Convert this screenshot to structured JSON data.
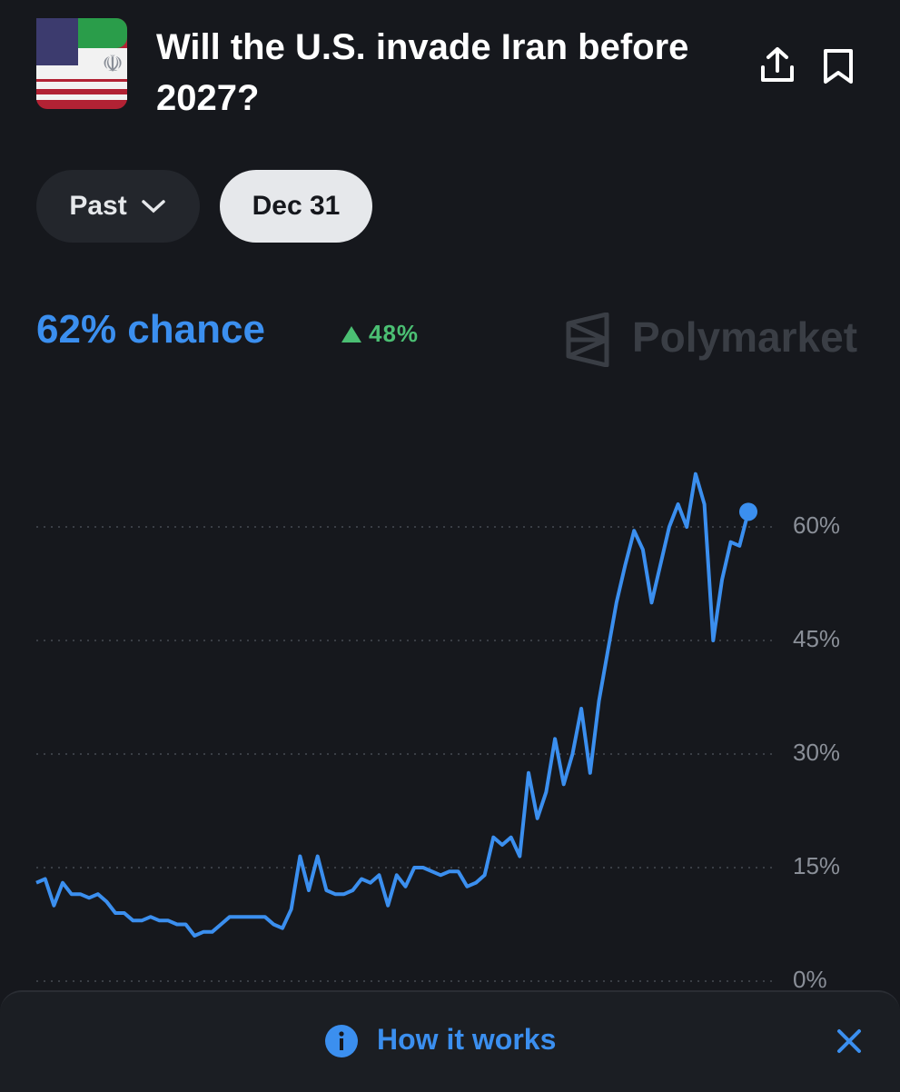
{
  "header": {
    "title": "Will the U.S. invade Iran before 2027?"
  },
  "filters": [
    "Past",
    "Dec 31"
  ],
  "summary": {
    "chance": "62% chance",
    "change": "48%"
  },
  "brand": "Polymarket",
  "footer": {
    "link": "How it works"
  },
  "chart_data": {
    "type": "line",
    "color": "#3b8fef",
    "grid": true,
    "ylim": [
      0,
      72
    ],
    "yticks": [
      {
        "value": 0,
        "label": "0%"
      },
      {
        "value": 15,
        "label": "15%"
      },
      {
        "value": 30,
        "label": "30%"
      },
      {
        "value": 45,
        "label": "45%"
      },
      {
        "value": 60,
        "label": "60%"
      }
    ],
    "values": [
      13,
      13.5,
      10,
      13,
      11.5,
      11.5,
      11,
      11.5,
      10.5,
      9,
      9,
      8,
      8,
      8.5,
      8,
      8,
      7.5,
      7.5,
      6,
      6.5,
      6.5,
      7.5,
      8.5,
      8.5,
      8.5,
      8.5,
      8.5,
      7.5,
      7,
      9.5,
      16.5,
      12,
      16.5,
      12,
      11.5,
      11.5,
      12,
      13.5,
      13,
      14,
      10,
      14,
      12.5,
      15,
      15,
      14.5,
      14,
      14.5,
      14.5,
      12.5,
      13,
      14,
      19,
      18,
      19,
      16.5,
      27.5,
      21.5,
      25,
      32,
      26,
      30,
      36,
      27.5,
      37,
      43.5,
      50,
      55,
      59.5,
      57,
      50,
      55,
      60,
      63,
      60,
      67,
      63,
      45,
      53,
      58,
      57.5,
      62
    ]
  }
}
